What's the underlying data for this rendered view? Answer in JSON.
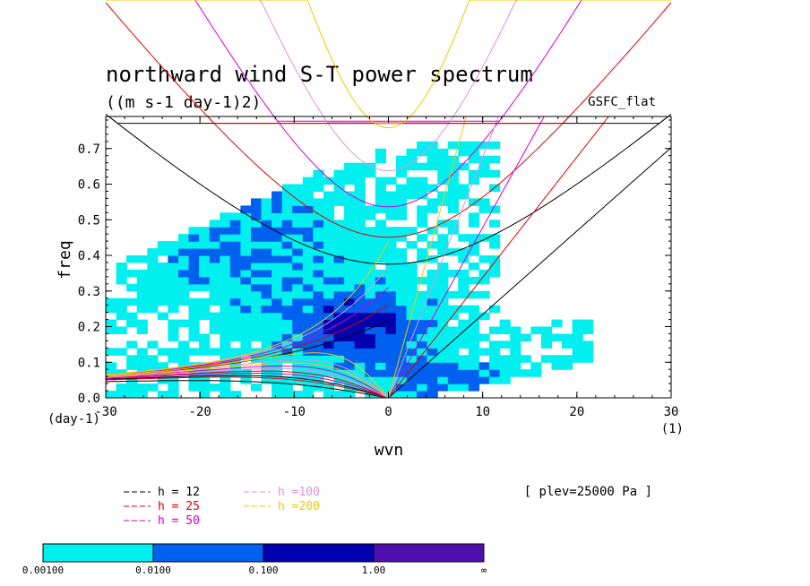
{
  "title": "northward wind S-T power spectrum",
  "units": "((m s-1 day-1)2)",
  "model": "GSFC_flat",
  "plev": "[ plev=25000 Pa ]",
  "chart_data": {
    "type": "heatmap",
    "xlabel": "wvn",
    "ylabel": "freq",
    "x_unit": "(1)",
    "y_unit": "(day-1)",
    "xlim": [
      -30,
      30
    ],
    "ylim": [
      0,
      0.79
    ],
    "xticks": [
      "-30",
      "-20",
      "-10",
      "0",
      "10",
      "20",
      "30"
    ],
    "yticks": [
      "0.0",
      "0.1",
      "0.2",
      "0.3",
      "0.4",
      "0.5",
      "0.6",
      "0.7"
    ],
    "dispersion_curves": [
      {
        "h": "12",
        "label": "h = 12",
        "color": "#000000"
      },
      {
        "h": "25",
        "label": "h = 25",
        "color": "#e00000"
      },
      {
        "h": "50",
        "label": "h = 50",
        "color": "#d000d0"
      },
      {
        "h": "100",
        "label": "h =100",
        "color": "#e090e0"
      },
      {
        "h": "200",
        "label": "h =200",
        "color": "#f0c800"
      }
    ],
    "colorbar": {
      "labels": [
        "0.00100",
        "0.0100",
        "0.100",
        "1.00",
        "∞"
      ],
      "colors": [
        "#00f0f0",
        "#0060f0",
        "#0000b0",
        "#5010b0"
      ]
    }
  }
}
